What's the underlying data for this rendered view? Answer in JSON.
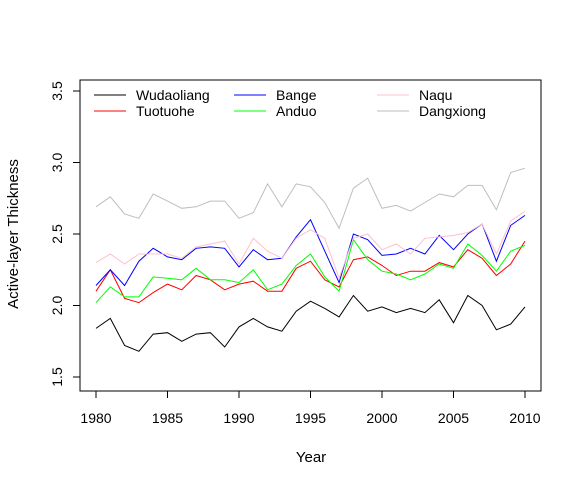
{
  "chart_data": {
    "type": "line",
    "title": "",
    "xlabel": "Year",
    "ylabel": "Active-layer Thickness",
    "xlim": [
      1980,
      2010
    ],
    "ylim": [
      1.5,
      3.5
    ],
    "xticks": [
      "1980",
      "1985",
      "1990",
      "1995",
      "2000",
      "2005",
      "2010"
    ],
    "yticks": [
      "1.5",
      "2.0",
      "2.5",
      "3.0",
      "3.5"
    ],
    "grid": false,
    "legend_position": "top",
    "x": [
      1980,
      1981,
      1982,
      1983,
      1984,
      1985,
      1986,
      1987,
      1988,
      1989,
      1990,
      1991,
      1992,
      1993,
      1994,
      1995,
      1996,
      1997,
      1998,
      1999,
      2000,
      2001,
      2002,
      2003,
      2004,
      2005,
      2006,
      2007,
      2008,
      2009,
      2010
    ],
    "series": [
      {
        "name": "Wudaoliang",
        "color": "#000000",
        "values": [
          1.84,
          1.91,
          1.72,
          1.68,
          1.8,
          1.81,
          1.75,
          1.8,
          1.81,
          1.71,
          1.85,
          1.91,
          1.85,
          1.82,
          1.96,
          2.03,
          1.98,
          1.92,
          2.07,
          1.96,
          1.99,
          1.95,
          1.98,
          1.95,
          2.04,
          1.88,
          2.07,
          2.0,
          1.83,
          1.87,
          1.99
        ]
      },
      {
        "name": "Tuotuohe",
        "color": "#ff0000",
        "values": [
          2.1,
          2.25,
          2.05,
          2.02,
          2.09,
          2.15,
          2.11,
          2.21,
          2.18,
          2.11,
          2.15,
          2.17,
          2.1,
          2.1,
          2.26,
          2.31,
          2.18,
          2.13,
          2.32,
          2.34,
          2.28,
          2.21,
          2.24,
          2.24,
          2.3,
          2.27,
          2.39,
          2.33,
          2.21,
          2.29,
          2.45
        ]
      },
      {
        "name": "Bange",
        "color": "#0000ff",
        "values": [
          2.14,
          2.25,
          2.14,
          2.31,
          2.4,
          2.34,
          2.32,
          2.4,
          2.41,
          2.4,
          2.27,
          2.39,
          2.32,
          2.33,
          2.48,
          2.6,
          2.38,
          2.16,
          2.5,
          2.46,
          2.35,
          2.36,
          2.4,
          2.36,
          2.49,
          2.39,
          2.5,
          2.57,
          2.31,
          2.56,
          2.63
        ]
      },
      {
        "name": "Anduo",
        "color": "#00ff00",
        "values": [
          2.02,
          2.13,
          2.06,
          2.06,
          2.2,
          2.19,
          2.18,
          2.26,
          2.18,
          2.18,
          2.16,
          2.25,
          2.11,
          2.15,
          2.28,
          2.36,
          2.2,
          2.1,
          2.46,
          2.32,
          2.24,
          2.22,
          2.18,
          2.22,
          2.29,
          2.26,
          2.43,
          2.35,
          2.24,
          2.38,
          2.42
        ]
      },
      {
        "name": "Naqu",
        "color": "#ffc0cb",
        "values": [
          2.3,
          2.36,
          2.29,
          2.36,
          2.36,
          2.36,
          2.33,
          2.41,
          2.43,
          2.45,
          2.29,
          2.47,
          2.38,
          2.33,
          2.47,
          2.53,
          2.47,
          2.19,
          2.47,
          2.5,
          2.39,
          2.43,
          2.36,
          2.47,
          2.48,
          2.49,
          2.51,
          2.57,
          2.36,
          2.59,
          2.66
        ]
      },
      {
        "name": "Dangxiong",
        "color": "#bebebe",
        "values": [
          2.69,
          2.76,
          2.64,
          2.61,
          2.78,
          2.73,
          2.68,
          2.69,
          2.73,
          2.73,
          2.61,
          2.65,
          2.85,
          2.69,
          2.85,
          2.83,
          2.72,
          2.54,
          2.82,
          2.89,
          2.68,
          2.7,
          2.66,
          2.72,
          2.78,
          2.76,
          2.84,
          2.84,
          2.67,
          2.93,
          2.96
        ]
      }
    ]
  }
}
